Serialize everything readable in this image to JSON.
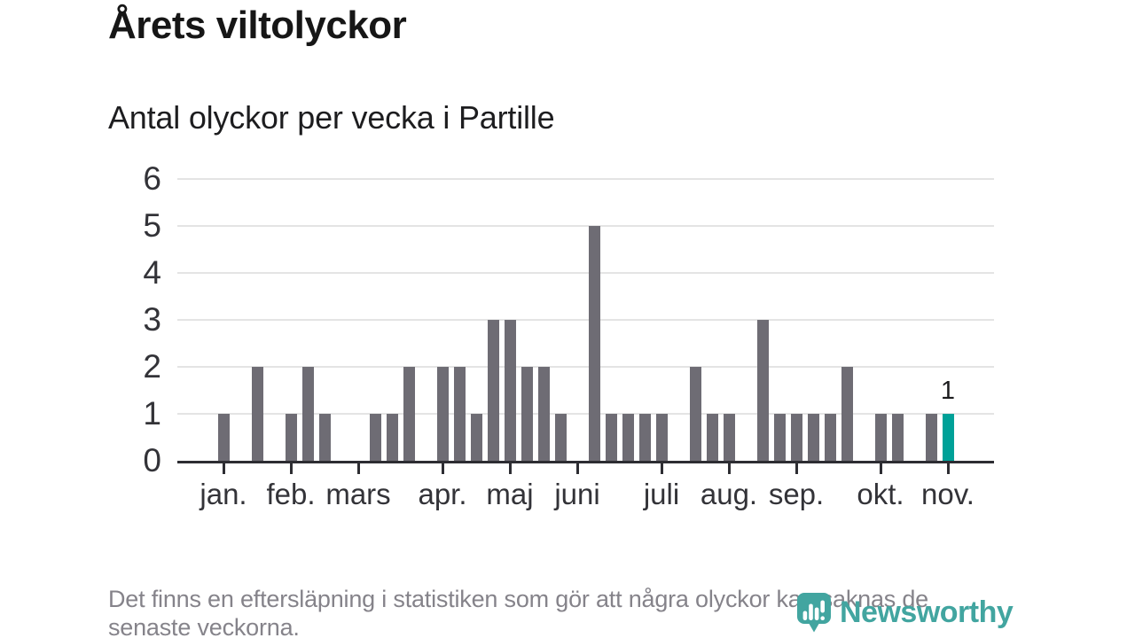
{
  "header": {
    "title": "Årets viltolyckor",
    "subtitle": "Antal olyckor per vecka i Partille"
  },
  "footer": {
    "line1": "Det finns en eftersläpning i statistiken som gör att några olyckor kan saknas de",
    "line2": "senaste veckorna."
  },
  "branding": {
    "name": "Newsworthy",
    "logo_icon": "newsworthy-pin-barchart-icon"
  },
  "colors": {
    "bar": "#6e6c74",
    "highlight": "#00a198",
    "brand": "#42a5a0",
    "grid": "#e4e4e4",
    "axis": "#2d2d32",
    "text": "#1d1d1f",
    "muted": "#85838a"
  },
  "chart_data": {
    "type": "bar",
    "title": "Årets viltolyckor",
    "subtitle": "Antal olyckor per vecka i Partille",
    "xlabel": "",
    "ylabel": "",
    "x_unit": "week",
    "weeks": [
      1,
      2,
      3,
      4,
      5,
      6,
      7,
      8,
      9,
      10,
      11,
      12,
      13,
      14,
      15,
      16,
      17,
      18,
      19,
      20,
      21,
      22,
      23,
      24,
      25,
      26,
      27,
      28,
      29,
      30,
      31,
      32,
      33,
      34,
      35,
      36,
      37,
      38,
      39,
      40,
      41,
      42,
      43,
      44
    ],
    "values": [
      1,
      0,
      2,
      0,
      1,
      2,
      1,
      0,
      0,
      1,
      1,
      2,
      0,
      2,
      2,
      1,
      3,
      3,
      2,
      2,
      1,
      0,
      5,
      1,
      1,
      1,
      1,
      0,
      2,
      1,
      1,
      0,
      3,
      1,
      1,
      1,
      1,
      2,
      0,
      1,
      1,
      0,
      1,
      1
    ],
    "highlight_last_bar": true,
    "last_bar_label": "1",
    "ylim": [
      0,
      6
    ],
    "y_tick_labels": [
      "0",
      "1",
      "2",
      "3",
      "4",
      "5",
      "6"
    ],
    "grid": true,
    "legend": "none",
    "month_ticks": [
      {
        "label": "jan.",
        "week": 1
      },
      {
        "label": "feb.",
        "week": 5
      },
      {
        "label": "mars",
        "week": 9
      },
      {
        "label": "apr.",
        "week": 14
      },
      {
        "label": "maj",
        "week": 18
      },
      {
        "label": "juni",
        "week": 22
      },
      {
        "label": "juli",
        "week": 27
      },
      {
        "label": "aug.",
        "week": 31
      },
      {
        "label": "sep.",
        "week": 35
      },
      {
        "label": "okt.",
        "week": 40
      },
      {
        "label": "nov.",
        "week": 44
      }
    ]
  }
}
